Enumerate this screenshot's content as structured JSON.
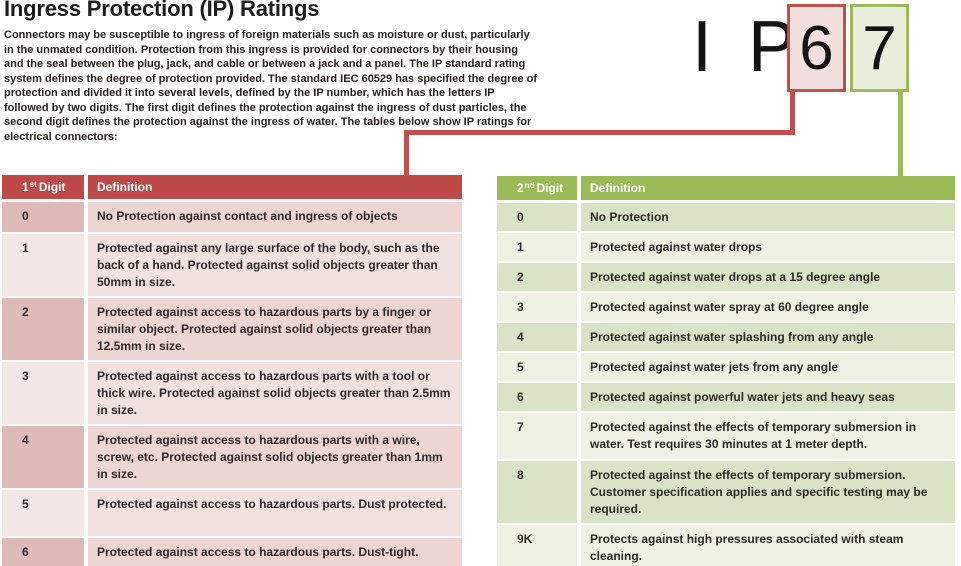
{
  "document": {
    "title": "Ingress Protection (IP) Ratings",
    "intro": "Connectors may be susceptible to ingress of foreign materials such as moisture or dust, particularly in the unmated condition. Protection from this ingress is provided for connectors by their housing and the seal between the plug, jack, and cable or between a jack and a panel. The IP standard rating system defines the degree of protection provided. The standard IEC 60529 has specified the degree of protection and divided it into several levels, defined by the IP number, which has the letters IP followed by two digits. The first digit defines the protection against the ingress of dust particles, the second digit defines the protection against the ingress of water. The tables below show IP ratings for electrical connectors:"
  },
  "ip_graphic": {
    "letters": "I P",
    "first_digit": "6",
    "second_digit": "7"
  },
  "colors": {
    "first_digit_accent": "#be4a47",
    "second_digit_accent": "#9bbb59"
  },
  "first_digit_table": {
    "header": {
      "digit_num": "1",
      "digit_sup": "st",
      "digit_word": "Digit",
      "definition": "Definition"
    },
    "rows": [
      {
        "digit": "0",
        "definition": "No Protection against contact and ingress of objects"
      },
      {
        "digit": "1",
        "definition": "Protected against any large surface of the body, such as the back of a hand. Protected against solid objects greater than 50mm in size."
      },
      {
        "digit": "2",
        "definition": "Protected against access to hazardous parts by a finger or similar object. Protected against solid objects greater than 12.5mm in size."
      },
      {
        "digit": "3",
        "definition": "Protected against access to hazardous parts with a tool or thick wire. Protected against solid objects greater than 2.5mm in size."
      },
      {
        "digit": "4",
        "definition": "Protected against access to hazardous parts with a wire, screw, etc. Protected against solid objects greater than 1mm in size."
      },
      {
        "digit": "5",
        "definition": "Protected against access to hazardous parts. Dust protected."
      },
      {
        "digit": "6",
        "definition": "Protected against access to hazardous parts. Dust-tight."
      }
    ]
  },
  "second_digit_table": {
    "header": {
      "digit_num": "2",
      "digit_sup": "nd",
      "digit_word": "Digit",
      "definition": "Definition"
    },
    "rows": [
      {
        "digit": "0",
        "definition": "No Protection"
      },
      {
        "digit": "1",
        "definition": "Protected against water drops"
      },
      {
        "digit": "2",
        "definition": "Protected against water drops at a 15 degree angle"
      },
      {
        "digit": "3",
        "definition": "Protected against water spray at 60 degree angle"
      },
      {
        "digit": "4",
        "definition": "Protected against water splashing from any angle"
      },
      {
        "digit": "5",
        "definition": "Protected against water jets from any angle"
      },
      {
        "digit": "6",
        "definition": "Protected against powerful water jets and heavy seas"
      },
      {
        "digit": "7",
        "definition": "Protected against the effects of temporary submersion in water. Test requires 30 minutes at 1 meter depth."
      },
      {
        "digit": "8",
        "definition": "Protected against the effects of temporary submersion. Customer specification applies and specific testing may be required."
      },
      {
        "digit": "9K",
        "definition": "Protects against high pressures associated with steam cleaning."
      }
    ]
  }
}
